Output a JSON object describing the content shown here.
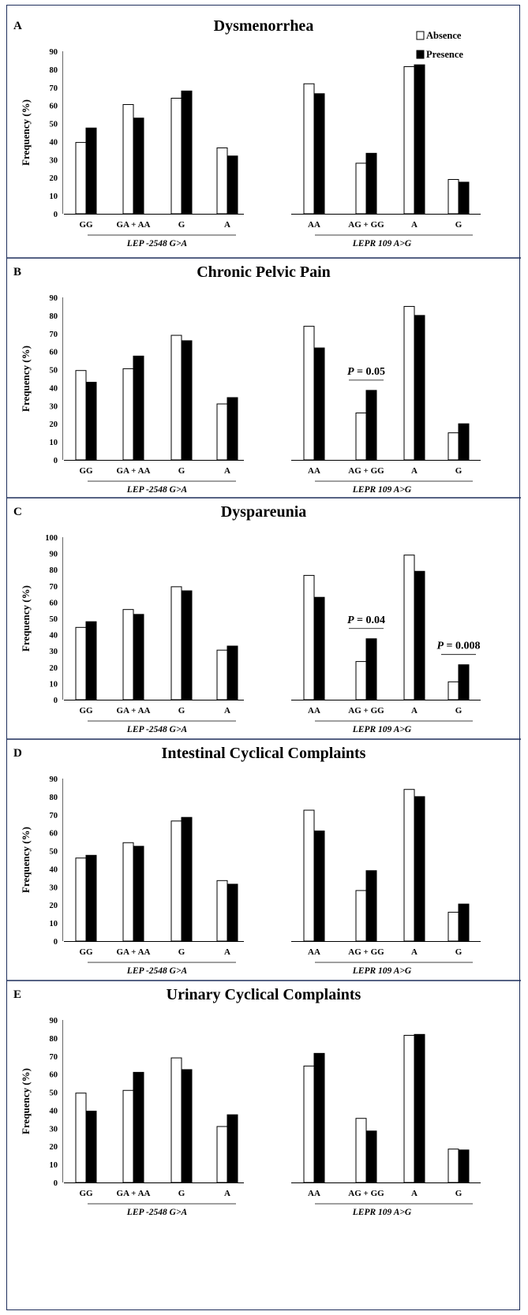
{
  "figure": {
    "legend": {
      "absence": "Absence",
      "presence": "Presence"
    },
    "colors": {
      "absence": "#ffffff",
      "presence": "#000000",
      "outline": "#000000",
      "frame": "#1f2f5c"
    }
  },
  "chart_data": [
    {
      "type": "bar",
      "panel": "A",
      "title": "Dysmenorrhea",
      "ylabel": "Frequency (%)",
      "ylim": [
        0,
        90
      ],
      "ticks": [
        "0",
        "10",
        "20",
        "30",
        "40",
        "50",
        "60",
        "70",
        "80",
        "90"
      ],
      "categories": [
        "GG",
        "GA + AA",
        "G",
        "A",
        "AA",
        "AG + GG",
        "A",
        "G"
      ],
      "groups": [
        "LEP -2548 G>A",
        "LEPR 109 A>G"
      ],
      "series": [
        {
          "name": "Absence",
          "values": [
            39.5,
            60.5,
            64,
            36.5,
            72,
            28,
            81.5,
            19
          ]
        },
        {
          "name": "Presence",
          "values": [
            47.5,
            53,
            68,
            32,
            66.5,
            33.5,
            82.5,
            17.5
          ]
        }
      ],
      "annotations": [],
      "legend_location": "top-right"
    },
    {
      "type": "bar",
      "panel": "B",
      "title": "Chronic Pelvic Pain",
      "ylabel": "Frequency (%)",
      "ylim": [
        0,
        90
      ],
      "ticks": [
        "0",
        "10",
        "20",
        "30",
        "40",
        "50",
        "60",
        "70",
        "80",
        "90"
      ],
      "categories": [
        "GG",
        "GA + AA",
        "G",
        "A",
        "AA",
        "AG + GG",
        "A",
        "G"
      ],
      "groups": [
        "LEP -2548 G>A",
        "LEPR 109 A>G"
      ],
      "series": [
        {
          "name": "Absence",
          "values": [
            49.5,
            50.5,
            69,
            31,
            74,
            26,
            85,
            15
          ]
        },
        {
          "name": "Presence",
          "values": [
            43,
            57.5,
            66,
            34.5,
            62,
            38.5,
            80,
            20
          ]
        }
      ],
      "annotations": [
        {
          "category_index": 5,
          "prefix": "P",
          "text": " = 0.05"
        }
      ]
    },
    {
      "type": "bar",
      "panel": "C",
      "title": "Dyspareunia",
      "ylabel": "Frequency (%)",
      "ylim": [
        0,
        100
      ],
      "ticks": [
        "0",
        "10",
        "20",
        "30",
        "40",
        "50",
        "60",
        "70",
        "80",
        "90",
        "100"
      ],
      "categories": [
        "GG",
        "GA + AA",
        "G",
        "A",
        "AA",
        "AG + GG",
        "A",
        "G"
      ],
      "groups": [
        "LEP -2548 G>A",
        "LEPR 109 A>G"
      ],
      "series": [
        {
          "name": "Absence",
          "values": [
            44.5,
            55.5,
            69.5,
            30.5,
            76.5,
            23.5,
            89,
            11
          ]
        },
        {
          "name": "Presence",
          "values": [
            48,
            52.5,
            67,
            33,
            63,
            37.5,
            79,
            21.5
          ]
        }
      ],
      "annotations": [
        {
          "category_index": 5,
          "prefix": "P",
          "text": " = 0.04"
        },
        {
          "category_index": 7,
          "prefix": "P",
          "text": " = 0.008"
        }
      ]
    },
    {
      "type": "bar",
      "panel": "D",
      "title": "Intestinal Cyclical Complaints",
      "ylabel": "Frequency (%)",
      "ylim": [
        0,
        90
      ],
      "ticks": [
        "0",
        "10",
        "20",
        "30",
        "40",
        "50",
        "60",
        "70",
        "80",
        "90"
      ],
      "categories": [
        "GG",
        "GA + AA",
        "G",
        "A",
        "AA",
        "AG + GG",
        "A",
        "G"
      ],
      "groups": [
        "LEP -2548 G>A",
        "LEPR 109 A>G"
      ],
      "series": [
        {
          "name": "Absence",
          "values": [
            46,
            54.5,
            66.5,
            33.5,
            72.5,
            28,
            84,
            16
          ]
        },
        {
          "name": "Presence",
          "values": [
            47.5,
            52.5,
            68.5,
            31.5,
            61,
            39,
            80,
            20.5
          ]
        }
      ],
      "annotations": []
    },
    {
      "type": "bar",
      "panel": "E",
      "title": "Urinary Cyclical Complaints",
      "ylabel": "Frequency (%)",
      "ylim": [
        0,
        90
      ],
      "ticks": [
        "0",
        "10",
        "20",
        "30",
        "40",
        "50",
        "60",
        "70",
        "80",
        "90"
      ],
      "categories": [
        "GG",
        "GA + AA",
        "G",
        "A",
        "AA",
        "AG + GG",
        "A",
        "G"
      ],
      "groups": [
        "LEP -2548 G>A",
        "LEPR 109 A>G"
      ],
      "series": [
        {
          "name": "Absence",
          "values": [
            49.5,
            51,
            69,
            31,
            64.5,
            35.5,
            81.5,
            18.5
          ]
        },
        {
          "name": "Presence",
          "values": [
            39.5,
            61,
            62.5,
            37.5,
            71.5,
            28.5,
            82,
            18
          ]
        }
      ],
      "annotations": []
    }
  ]
}
